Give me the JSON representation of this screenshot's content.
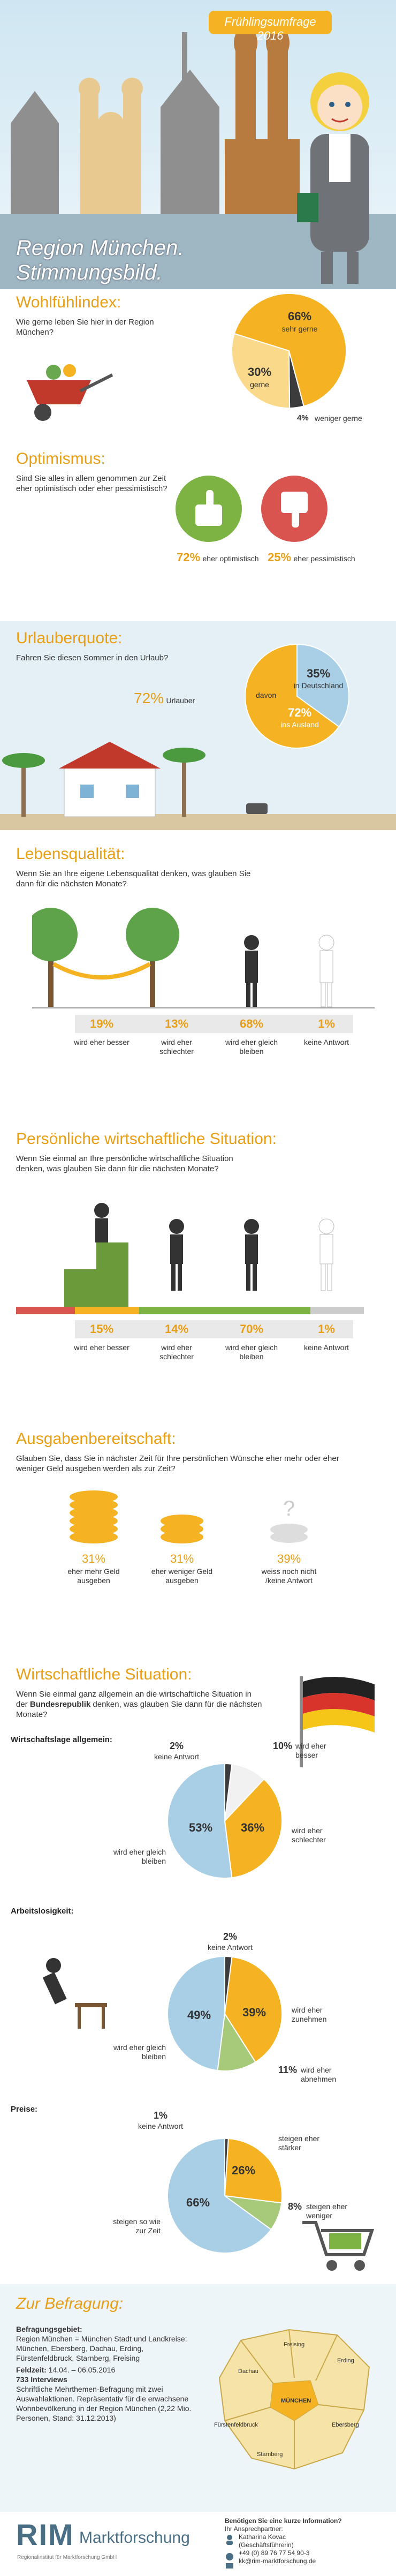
{
  "header": {
    "badge": "Frühlingsumfrage 2016",
    "title": "Region München. Stimmungsbild."
  },
  "wohlfuehlindex": {
    "title": "Wohlfühlindex:",
    "question": "Wie gerne leben Sie hier in der Region München?",
    "slices": [
      {
        "value": 66,
        "value_label": "66%",
        "label": "sehr gerne",
        "color": "#f5b324"
      },
      {
        "value": 30,
        "value_label": "30%",
        "label": "gerne",
        "color": "#fad98a"
      },
      {
        "value": 4,
        "value_label": "4%",
        "label": "weniger gerne",
        "color": "#3c3c3c"
      }
    ]
  },
  "optimismus": {
    "title": "Optimismus:",
    "question": "Sind Sie alles in allem genommen zur Zeit eher optimistisch oder eher pessimistisch?",
    "items": [
      {
        "value": "72%",
        "label": "eher optimistisch"
      },
      {
        "value": "25%",
        "label": "eher pessimistisch"
      }
    ]
  },
  "urlauberquote": {
    "title": "Urlauberquote:",
    "question": "Fahren Sie diesen Sommer in den Urlaub?",
    "share": {
      "value": "72%",
      "label": "Urlauber"
    },
    "pie_intro": "davon",
    "slices": [
      {
        "value": 35,
        "value_label": "35%",
        "label": "in Deutschland",
        "color": "#a9cfe6"
      },
      {
        "value": 72,
        "value_label": "72%",
        "label": "ins Ausland",
        "color": "#f5b324"
      }
    ]
  },
  "lebensqualitaet": {
    "title": "Lebensqualität:",
    "question": "Wenn Sie an Ihre eigene Lebensqualität denken, was glauben Sie dann für die nächsten Monate?",
    "items": [
      {
        "value": "19%",
        "label": "wird eher besser"
      },
      {
        "value": "13%",
        "label": "wird eher schlechter"
      },
      {
        "value": "68%",
        "label": "wird eher gleich bleiben"
      },
      {
        "value": "1%",
        "label": "keine Antwort"
      }
    ]
  },
  "persoenlich": {
    "title": "Persönliche wirtschaftliche Situation:",
    "question": "Wenn Sie einmal an Ihre persönliche wirtschaftliche Situation denken, was glauben Sie dann für die nächsten Monate?",
    "items": [
      {
        "value": "15%",
        "label": "wird eher besser"
      },
      {
        "value": "14%",
        "label": "wird eher schlechter"
      },
      {
        "value": "70%",
        "label": "wird eher gleich bleiben"
      },
      {
        "value": "1%",
        "label": "keine Antwort"
      }
    ]
  },
  "ausgaben": {
    "title": "Ausgabenbereitschaft:",
    "question": "Glauben Sie, dass Sie in nächster Zeit für Ihre persönlichen Wünsche eher mehr oder eher weniger Geld ausgeben werden als zur Zeit?",
    "items": [
      {
        "value": "31%",
        "label": "eher mehr Geld ausgeben"
      },
      {
        "value": "31%",
        "label": "eher weniger Geld ausgeben"
      },
      {
        "value": "39%",
        "label": "weiss noch nicht /keine Antwort"
      }
    ]
  },
  "wirtschaft": {
    "title": "Wirtschaftliche Situation:",
    "question_parts": [
      "Wenn Sie einmal ganz allgemein an die wirtschaftliche Situation in der ",
      "Bundesrepublik",
      " denken, was glauben Sie dann für die nächsten Monate?"
    ],
    "charts": [
      {
        "title": "Wirtschaftslage allgemein:",
        "slices": [
          {
            "value": 2,
            "value_label": "2%",
            "label": "keine Antwort",
            "color": "#3c3c3c"
          },
          {
            "value": 10,
            "value_label": "10%",
            "label": "wird eher besser",
            "color": "#f1f1f1"
          },
          {
            "value": 36,
            "value_label": "36%",
            "label": "wird eher schlechter",
            "color": "#f5b324"
          },
          {
            "value": 53,
            "value_label": "53%",
            "label": "wird eher gleich bleiben",
            "color": "#a9cfe6"
          }
        ]
      },
      {
        "title": "Arbeitslosigkeit:",
        "slices": [
          {
            "value": 2,
            "value_label": "2%",
            "label": "keine Antwort",
            "color": "#3c3c3c"
          },
          {
            "value": 39,
            "value_label": "39%",
            "label": "wird eher zunehmen",
            "color": "#f5b324"
          },
          {
            "value": 11,
            "value_label": "11%",
            "label": "wird eher abnehmen",
            "color": "#a7c97a"
          },
          {
            "value": 49,
            "value_label": "49%",
            "label": "wird eher gleich bleiben",
            "color": "#a9cfe6"
          }
        ]
      },
      {
        "title": "Preise:",
        "slices": [
          {
            "value": 1,
            "value_label": "1%",
            "label": "keine Antwort",
            "color": "#3c3c3c"
          },
          {
            "value": 26,
            "value_label": "26%",
            "label": "steigen eher stärker",
            "color": "#f5b324"
          },
          {
            "value": 8,
            "value_label": "8%",
            "label": "steigen eher weniger",
            "color": "#a7c97a"
          },
          {
            "value": 66,
            "value_label": "66%",
            "label": "steigen so wie zur Zeit",
            "color": "#a9cfe6"
          }
        ]
      }
    ]
  },
  "befragung": {
    "title": "Zur Befragung:",
    "area_label": "Befragungsgebiet:",
    "area": "Region München = München Stadt und Landkreise: München, Ebersberg, Dachau, Erding, Fürstenfeldbruck, Starnberg, Freising",
    "field_label": "Feldzeit:",
    "field": "14.04. – 06.05.2016",
    "interviews": "733 Interviews",
    "method": "Schriftliche Mehrthemen-Befragung mit zwei Auswahlaktionen. Repräsentativ für die erwachsene Wohnbevölkerung in der Region München (2,22 Mio. Personen, Stand: 31.12.2013)",
    "map_labels": [
      "Freising",
      "Erding",
      "Dachau",
      "MÜNCHEN",
      "Fürstenfeldbruck",
      "Ebersberg",
      "Starnberg"
    ]
  },
  "footer": {
    "logo": "RIM",
    "company": "Marktforschung",
    "tagline": "Regionalinstitut für Marktforschung GmbH",
    "question": "Benötigen Sie eine kurze Information?",
    "contact_label": "Ihr Ansprechpartner:",
    "contact_name": "Katharina Kovac",
    "contact_role": "(Geschäftsführerin)",
    "phone": "+49 (0) 89 76 77 54 90-3",
    "email": "kk@rim-marktforschung.de"
  }
}
